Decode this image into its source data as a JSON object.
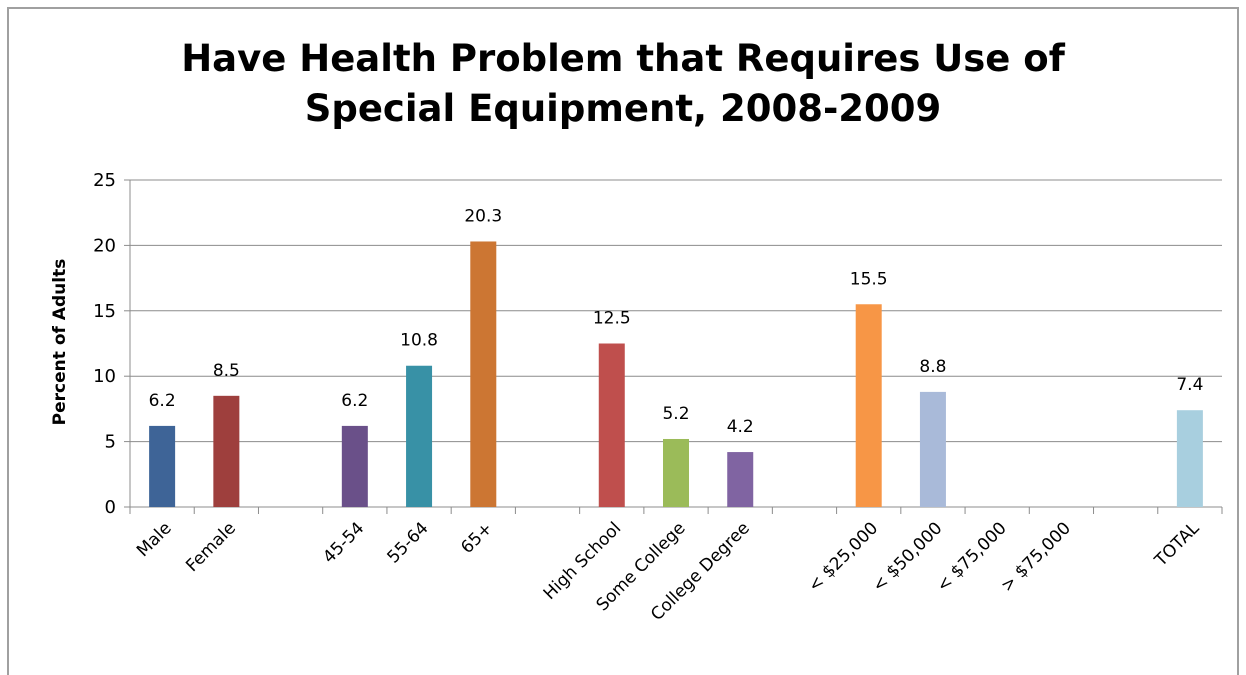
{
  "chart_data": {
    "type": "bar",
    "title": "Have Health Problem that Requires Use of Special Equipment, 2008-2009",
    "title_lines": [
      "Have Health Problem that Requires Use of",
      "Special Equipment, 2008-2009"
    ],
    "xlabel": "",
    "ylabel": "Percent of Adults",
    "ylim": [
      0,
      25
    ],
    "yticks": [
      0,
      5,
      10,
      15,
      20,
      25
    ],
    "grid": true,
    "legend": "none",
    "categories": [
      "Male",
      "Female",
      "",
      "45-54",
      "55-64",
      "65+",
      "",
      "High School",
      "Some College",
      "College Degree",
      "",
      "< $25,000",
      "< $50,000",
      "< $75,000",
      "> $75,000",
      "",
      "TOTAL"
    ],
    "values": [
      6.2,
      8.5,
      null,
      6.2,
      10.8,
      20.3,
      null,
      12.5,
      5.2,
      4.2,
      null,
      15.5,
      8.8,
      null,
      null,
      null,
      7.4
    ],
    "data_labels": [
      "6.2",
      "8.5",
      "",
      "6.2",
      "10.8",
      "20.3",
      "",
      "12.5",
      "5.2",
      "4.2",
      "",
      "15.5",
      "8.8",
      "",
      "",
      "",
      "7.4"
    ],
    "bar_colors": [
      "#3e6497",
      "#9e3f3d",
      "",
      "#6a5089",
      "#3891a6",
      "#cc7633",
      "",
      "#bf4f4d",
      "#9bbb59",
      "#8064a2",
      "",
      "#f79646",
      "#a9bad9",
      "",
      "",
      "",
      "#a8cfdf"
    ]
  }
}
